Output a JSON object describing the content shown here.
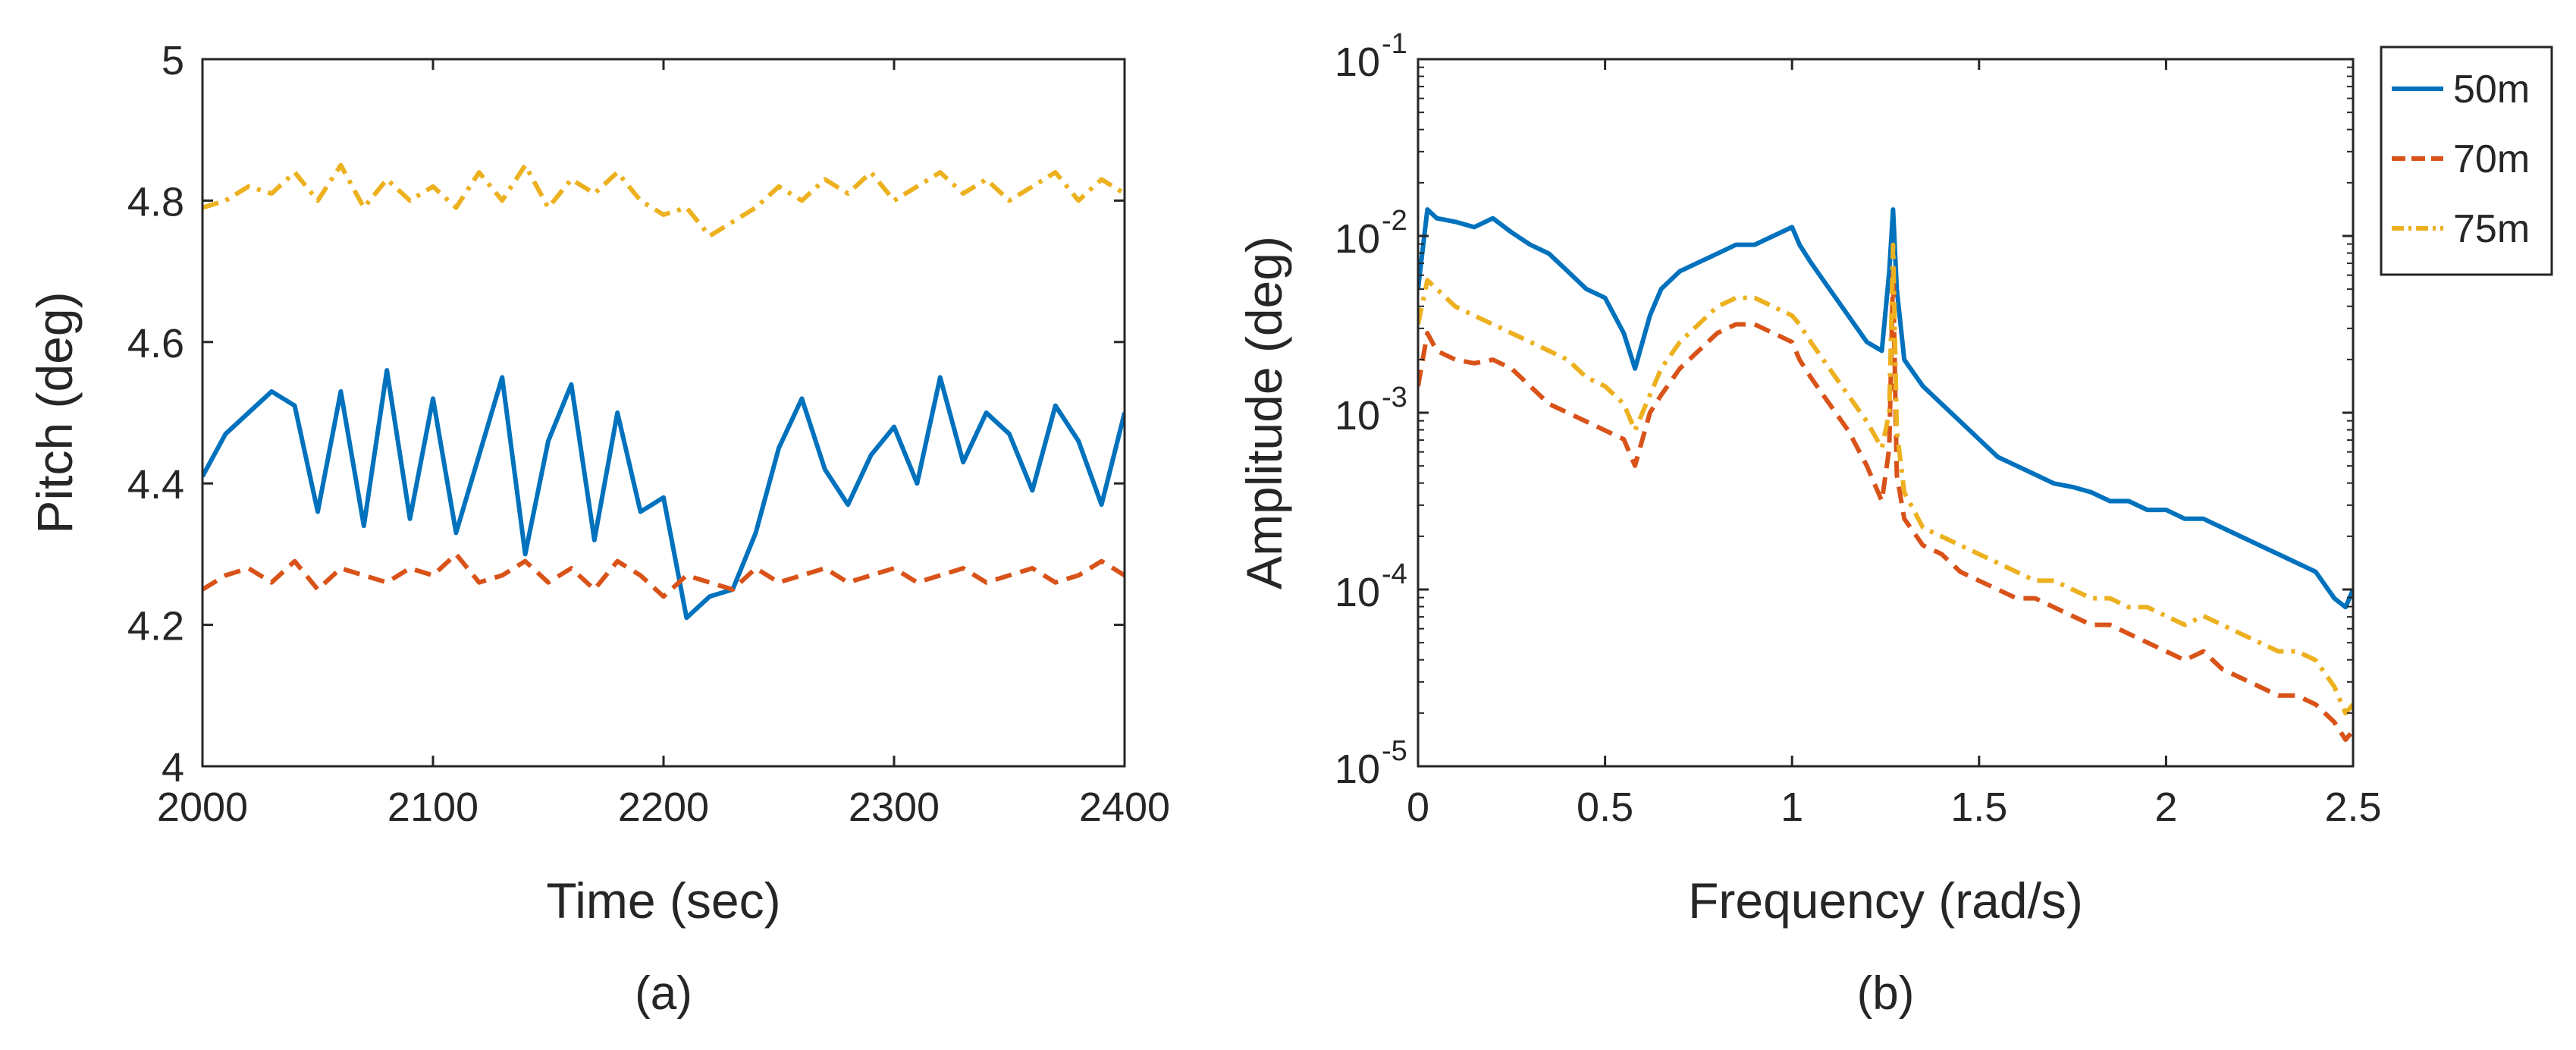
{
  "chart_data": [
    {
      "type": "line",
      "panel_label": "(a)",
      "xlabel": "Time (sec)",
      "ylabel": "Pitch (deg)",
      "xlim": [
        2000,
        2400
      ],
      "ylim": [
        4,
        5
      ],
      "xticks": [
        2000,
        2100,
        2200,
        2300,
        2400
      ],
      "xtick_labels": [
        "2000",
        "2100",
        "2200",
        "2300",
        "2400"
      ],
      "yticks": [
        4,
        4.2,
        4.4,
        4.6,
        4.8,
        5
      ],
      "ytick_labels": [
        "4",
        "4.2",
        "4.4",
        "4.6",
        "4.8",
        "5"
      ],
      "grid": false,
      "x": [
        2000,
        2010,
        2020,
        2030,
        2040,
        2050,
        2060,
        2070,
        2080,
        2090,
        2100,
        2110,
        2120,
        2130,
        2140,
        2150,
        2160,
        2170,
        2180,
        2190,
        2200,
        2210,
        2220,
        2230,
        2240,
        2250,
        2260,
        2270,
        2280,
        2290,
        2300,
        2310,
        2320,
        2330,
        2340,
        2350,
        2360,
        2370,
        2380,
        2390,
        2400
      ],
      "series": [
        {
          "name": "50m",
          "color": "#0072BD",
          "style": "solid",
          "values": [
            4.41,
            4.47,
            4.5,
            4.53,
            4.51,
            4.36,
            4.53,
            4.34,
            4.56,
            4.35,
            4.52,
            4.33,
            4.44,
            4.55,
            4.3,
            4.46,
            4.54,
            4.32,
            4.5,
            4.36,
            4.38,
            4.21,
            4.24,
            4.25,
            4.33,
            4.45,
            4.52,
            4.42,
            4.37,
            4.44,
            4.48,
            4.4,
            4.55,
            4.43,
            4.5,
            4.47,
            4.39,
            4.51,
            4.46,
            4.37,
            4.5
          ]
        },
        {
          "name": "70m",
          "color": "#D95319",
          "style": "dashed",
          "values": [
            4.25,
            4.27,
            4.28,
            4.26,
            4.29,
            4.25,
            4.28,
            4.27,
            4.26,
            4.28,
            4.27,
            4.3,
            4.26,
            4.27,
            4.29,
            4.26,
            4.28,
            4.25,
            4.29,
            4.27,
            4.24,
            4.27,
            4.26,
            4.25,
            4.28,
            4.26,
            4.27,
            4.28,
            4.26,
            4.27,
            4.28,
            4.26,
            4.27,
            4.28,
            4.26,
            4.27,
            4.28,
            4.26,
            4.27,
            4.29,
            4.27
          ]
        },
        {
          "name": "75m",
          "color": "#EDB120",
          "style": "dashdot",
          "values": [
            4.79,
            4.8,
            4.82,
            4.81,
            4.84,
            4.8,
            4.85,
            4.79,
            4.83,
            4.8,
            4.82,
            4.79,
            4.84,
            4.8,
            4.85,
            4.79,
            4.83,
            4.81,
            4.84,
            4.8,
            4.78,
            4.79,
            4.75,
            4.77,
            4.79,
            4.82,
            4.8,
            4.83,
            4.81,
            4.84,
            4.8,
            4.82,
            4.84,
            4.81,
            4.83,
            4.8,
            4.82,
            4.84,
            4.8,
            4.83,
            4.81
          ]
        }
      ]
    },
    {
      "type": "line",
      "panel_label": "(b)",
      "xlabel": "Frequency (rad/s)",
      "ylabel": "Amplitude (deg)",
      "yscale": "log",
      "xlim": [
        0,
        2.5
      ],
      "ylim_exponent": [
        -5,
        -1
      ],
      "xticks": [
        0,
        0.5,
        1,
        1.5,
        2,
        2.5
      ],
      "xtick_labels": [
        "0",
        "0.5",
        "1",
        "1.5",
        "2",
        "2.5"
      ],
      "yticks_exponent": [
        -5,
        -4,
        -3,
        -2,
        -1
      ],
      "ytick_base": "10",
      "ytick_exponent_labels": [
        "-5",
        "-4",
        "-3",
        "-2",
        "-1"
      ],
      "grid": false,
      "legend_position": "top-right outside",
      "x": [
        0,
        0.025,
        0.05,
        0.1,
        0.15,
        0.2,
        0.25,
        0.3,
        0.35,
        0.4,
        0.45,
        0.5,
        0.55,
        0.58,
        0.62,
        0.65,
        0.7,
        0.75,
        0.8,
        0.85,
        0.9,
        0.95,
        1.0,
        1.02,
        1.05,
        1.1,
        1.15,
        1.2,
        1.24,
        1.26,
        1.27,
        1.28,
        1.3,
        1.35,
        1.4,
        1.45,
        1.5,
        1.55,
        1.6,
        1.65,
        1.7,
        1.75,
        1.8,
        1.85,
        1.9,
        1.95,
        2.0,
        2.05,
        2.1,
        2.15,
        2.2,
        2.25,
        2.3,
        2.35,
        2.4,
        2.45,
        2.48,
        2.5
      ],
      "series": [
        {
          "name": "50m",
          "color": "#0072BD",
          "style": "solid",
          "log10_values": [
            -2.3,
            -1.85,
            -1.9,
            -1.92,
            -1.95,
            -1.9,
            -1.98,
            -2.05,
            -2.1,
            -2.2,
            -2.3,
            -2.35,
            -2.55,
            -2.75,
            -2.45,
            -2.3,
            -2.2,
            -2.15,
            -2.1,
            -2.05,
            -2.05,
            -2.0,
            -1.95,
            -2.05,
            -2.15,
            -2.3,
            -2.45,
            -2.6,
            -2.65,
            -2.2,
            -1.85,
            -2.3,
            -2.7,
            -2.85,
            -2.95,
            -3.05,
            -3.15,
            -3.25,
            -3.3,
            -3.35,
            -3.4,
            -3.42,
            -3.45,
            -3.5,
            -3.5,
            -3.55,
            -3.55,
            -3.6,
            -3.6,
            -3.65,
            -3.7,
            -3.75,
            -3.8,
            -3.85,
            -3.9,
            -4.05,
            -4.1,
            -4.0
          ]
        },
        {
          "name": "70m",
          "color": "#D95319",
          "style": "dashed",
          "log10_values": [
            -2.85,
            -2.55,
            -2.65,
            -2.7,
            -2.72,
            -2.7,
            -2.75,
            -2.85,
            -2.95,
            -3.0,
            -3.05,
            -3.1,
            -3.15,
            -3.3,
            -3.0,
            -2.9,
            -2.75,
            -2.65,
            -2.55,
            -2.5,
            -2.5,
            -2.55,
            -2.6,
            -2.7,
            -2.8,
            -2.95,
            -3.1,
            -3.3,
            -3.5,
            -3.2,
            -2.2,
            -3.35,
            -3.6,
            -3.75,
            -3.8,
            -3.9,
            -3.95,
            -4.0,
            -4.05,
            -4.05,
            -4.1,
            -4.15,
            -4.2,
            -4.2,
            -4.25,
            -4.3,
            -4.35,
            -4.4,
            -4.35,
            -4.45,
            -4.5,
            -4.55,
            -4.6,
            -4.6,
            -4.65,
            -4.75,
            -4.85,
            -4.8
          ]
        },
        {
          "name": "75m",
          "color": "#EDB120",
          "style": "dashdot",
          "log10_values": [
            -2.5,
            -2.25,
            -2.3,
            -2.4,
            -2.45,
            -2.5,
            -2.55,
            -2.6,
            -2.65,
            -2.7,
            -2.8,
            -2.85,
            -2.95,
            -3.1,
            -2.9,
            -2.75,
            -2.6,
            -2.5,
            -2.4,
            -2.35,
            -2.35,
            -2.4,
            -2.45,
            -2.5,
            -2.6,
            -2.75,
            -2.9,
            -3.05,
            -3.2,
            -3.0,
            -2.05,
            -3.1,
            -3.45,
            -3.65,
            -3.7,
            -3.75,
            -3.8,
            -3.85,
            -3.9,
            -3.95,
            -3.95,
            -4.0,
            -4.05,
            -4.05,
            -4.1,
            -4.1,
            -4.15,
            -4.2,
            -4.15,
            -4.2,
            -4.25,
            -4.3,
            -4.35,
            -4.35,
            -4.4,
            -4.55,
            -4.7,
            -4.65
          ]
        }
      ],
      "legend": [
        "50m",
        "70m",
        "75m"
      ]
    }
  ]
}
